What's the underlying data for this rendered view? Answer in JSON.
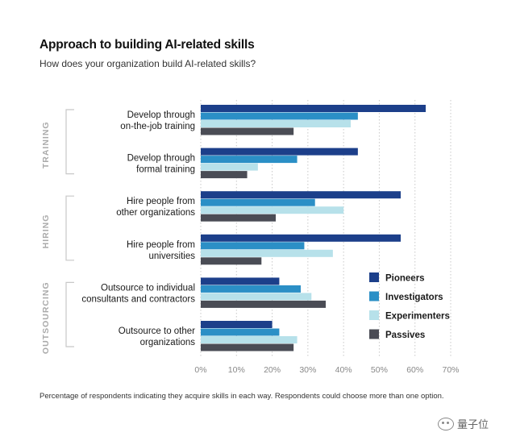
{
  "chart_data": {
    "type": "bar",
    "orientation": "horizontal",
    "title": "Approach to building AI-related skills",
    "subtitle": "How does your organization build AI-related skills?",
    "footnote": "Percentage of respondents indicating they acquire skills in each way. Respondents could choose more than one option.",
    "groups": [
      {
        "label": "TRAINING",
        "categories": [
          0,
          1
        ]
      },
      {
        "label": "HIRING",
        "categories": [
          2,
          3
        ]
      },
      {
        "label": "OUTSOURCING",
        "categories": [
          4,
          5
        ]
      }
    ],
    "categories": [
      [
        "Develop through",
        "on-the-job training"
      ],
      [
        "Develop through",
        "formal training"
      ],
      [
        "Hire people from",
        "other organizations"
      ],
      [
        "Hire people from",
        "universities"
      ],
      [
        "Outsource to individual",
        "consultants and contractors"
      ],
      [
        "Outsource to other",
        "organizations"
      ]
    ],
    "series": [
      {
        "name": "Pioneers",
        "color": "#1c3f8a",
        "values": [
          63,
          44,
          56,
          56,
          22,
          20
        ]
      },
      {
        "name": "Investigators",
        "color": "#2b8fc6",
        "values": [
          44,
          27,
          32,
          29,
          28,
          22
        ]
      },
      {
        "name": "Experimenters",
        "color": "#b7e1ea",
        "values": [
          42,
          16,
          40,
          37,
          31,
          27
        ]
      },
      {
        "name": "Passives",
        "color": "#4a4c55",
        "values": [
          26,
          13,
          21,
          17,
          35,
          26
        ]
      }
    ],
    "xlim": [
      0,
      70
    ],
    "xticks": [
      "0%",
      "10%",
      "20%",
      "30%",
      "40%",
      "50%",
      "60%",
      "70%"
    ],
    "grid": true,
    "legend_position": "right"
  },
  "watermark": "量子位"
}
